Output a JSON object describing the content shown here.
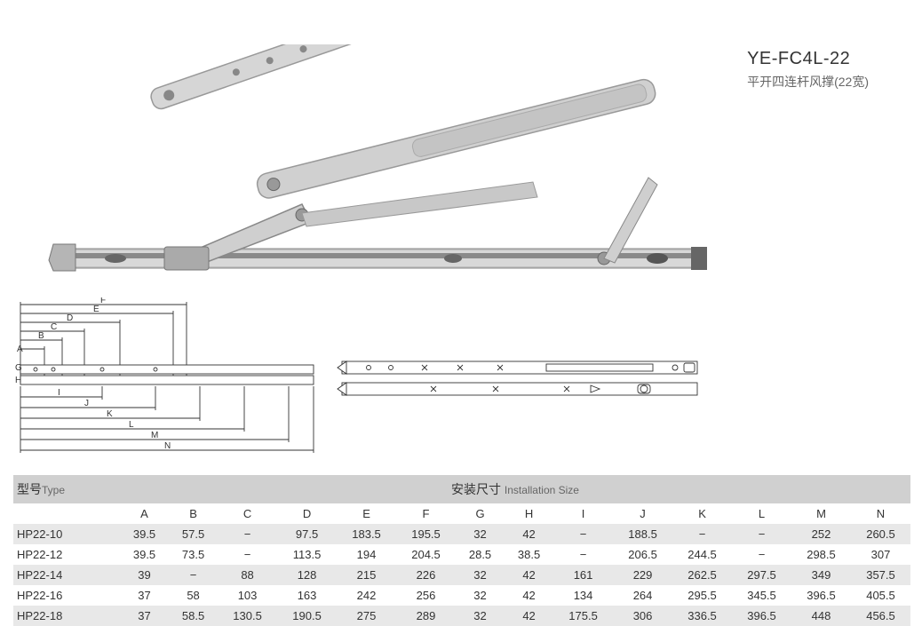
{
  "title": {
    "model": "YE-FC4L-22",
    "desc": "平开四连杆风撑(22宽)"
  },
  "table": {
    "header": {
      "type_cn": "型号",
      "type_en": "Type",
      "size_cn": "安装尺寸",
      "size_en": "Installation Size"
    },
    "columns": [
      "A",
      "B",
      "C",
      "D",
      "E",
      "F",
      "G",
      "H",
      "I",
      "J",
      "K",
      "L",
      "M",
      "N"
    ],
    "rows": [
      {
        "type": "HP22-10",
        "vals": [
          "39.5",
          "57.5",
          "−",
          "97.5",
          "183.5",
          "195.5",
          "32",
          "42",
          "−",
          "188.5",
          "−",
          "−",
          "252",
          "260.5"
        ]
      },
      {
        "type": "HP22-12",
        "vals": [
          "39.5",
          "73.5",
          "−",
          "113.5",
          "194",
          "204.5",
          "28.5",
          "38.5",
          "−",
          "206.5",
          "244.5",
          "−",
          "298.5",
          "307"
        ]
      },
      {
        "type": "HP22-14",
        "vals": [
          "39",
          "−",
          "88",
          "128",
          "215",
          "226",
          "32",
          "42",
          "161",
          "229",
          "262.5",
          "297.5",
          "349",
          "357.5"
        ]
      },
      {
        "type": "HP22-16",
        "vals": [
          "37",
          "58",
          "103",
          "163",
          "242",
          "256",
          "32",
          "42",
          "134",
          "264",
          "295.5",
          "345.5",
          "396.5",
          "405.5"
        ]
      },
      {
        "type": "HP22-18",
        "vals": [
          "37",
          "58.5",
          "130.5",
          "190.5",
          "275",
          "289",
          "32",
          "42",
          "175.5",
          "306",
          "336.5",
          "396.5",
          "448",
          "456.5"
        ]
      }
    ]
  },
  "diagram": {
    "dim_labels": [
      "A",
      "B",
      "C",
      "D",
      "E",
      "F",
      "G",
      "H",
      "I",
      "J",
      "K",
      "L",
      "M",
      "N"
    ]
  },
  "colors": {
    "header_bg": "#d0d0d0",
    "row_odd_bg": "#e8e8e8",
    "row_even_bg": "#ffffff",
    "text": "#333333",
    "subtext": "#666666"
  }
}
